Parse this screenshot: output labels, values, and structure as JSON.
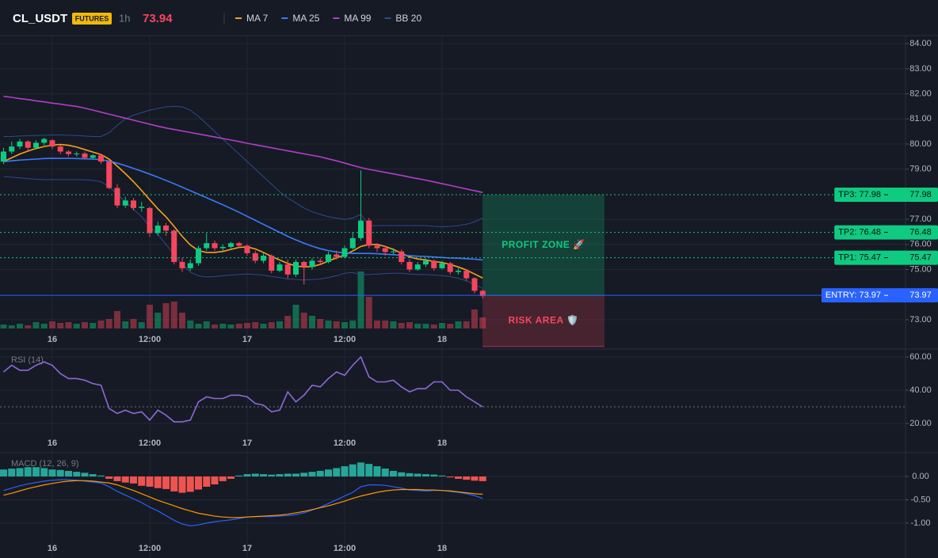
{
  "header": {
    "symbol": "CL_USDT",
    "badge": "FUTURES",
    "interval": "1h",
    "price": 73.94
  },
  "chart_data": [
    {
      "type": "candlestick",
      "categories": [
        null,
        null,
        null,
        null,
        null,
        null,
        "16",
        null,
        null,
        null,
        null,
        null,
        null,
        null,
        null,
        null,
        null,
        null,
        "12:00",
        null,
        null,
        null,
        null,
        null,
        null,
        null,
        null,
        null,
        null,
        null,
        "17",
        null,
        null,
        null,
        null,
        null,
        null,
        null,
        null,
        null,
        null,
        null,
        "12:00",
        null,
        null,
        null,
        null,
        null,
        null,
        null,
        null,
        null,
        null,
        null,
        "18",
        null,
        null,
        null,
        null,
        null
      ],
      "open": [
        79.3,
        79.7,
        79.9,
        80.1,
        79.85,
        80.05,
        80.15,
        79.9,
        79.7,
        79.6,
        79.62,
        79.45,
        79.55,
        79.3,
        78.25,
        77.55,
        77.75,
        77.45,
        77.45,
        76.45,
        76.75,
        76.55,
        75.3,
        75.05,
        75.25,
        75.85,
        76.05,
        75.85,
        75.9,
        76.05,
        75.95,
        75.65,
        75.35,
        75.55,
        74.95,
        75.2,
        74.8,
        75.3,
        75.1,
        75.35,
        75.3,
        75.6,
        75.5,
        75.85,
        76.25,
        76.95,
        75.95,
        75.85,
        75.7,
        75.72,
        75.3,
        75.0,
        75.2,
        75.35,
        75.05,
        75.25,
        74.9,
        74.95,
        74.65,
        74.15
      ],
      "high": [
        79.85,
        80.1,
        80.2,
        80.15,
        80.15,
        80.25,
        80.2,
        79.95,
        79.75,
        79.7,
        79.7,
        79.6,
        79.6,
        79.35,
        78.4,
        77.9,
        77.85,
        77.7,
        77.5,
        76.9,
        76.85,
        76.6,
        75.45,
        75.4,
        75.95,
        76.45,
        76.15,
        76.0,
        76.1,
        76.1,
        76.0,
        75.75,
        75.65,
        75.6,
        75.3,
        75.4,
        75.4,
        75.35,
        75.45,
        75.45,
        75.7,
        75.75,
        75.95,
        76.5,
        78.95,
        77.05,
        76.05,
        75.95,
        75.85,
        75.8,
        75.4,
        75.3,
        75.45,
        75.4,
        75.35,
        75.3,
        75.05,
        75.0,
        74.7,
        74.2
      ],
      "low": [
        79.2,
        79.6,
        79.8,
        79.75,
        79.8,
        79.95,
        79.8,
        79.6,
        79.5,
        79.5,
        79.4,
        79.4,
        79.2,
        78.2,
        77.45,
        77.45,
        77.35,
        77.3,
        76.3,
        76.35,
        76.35,
        75.2,
        74.9,
        74.95,
        75.15,
        75.75,
        75.75,
        75.75,
        75.8,
        75.85,
        75.55,
        75.25,
        75.25,
        74.85,
        74.9,
        74.65,
        74.7,
        74.4,
        75.0,
        75.2,
        75.25,
        75.4,
        75.45,
        75.8,
        76.15,
        75.85,
        75.7,
        75.55,
        75.6,
        75.2,
        74.9,
        74.95,
        75.1,
        74.95,
        75.0,
        74.8,
        74.8,
        74.55,
        74.05,
        73.85
      ],
      "close": [
        79.7,
        79.9,
        80.1,
        79.85,
        80.05,
        80.2,
        79.9,
        79.7,
        79.6,
        79.62,
        79.45,
        79.55,
        79.3,
        78.25,
        77.55,
        77.75,
        77.45,
        77.5,
        76.45,
        76.75,
        76.55,
        75.3,
        75.05,
        75.25,
        75.85,
        76.05,
        75.85,
        75.9,
        76.05,
        75.95,
        75.65,
        75.35,
        75.55,
        74.95,
        75.2,
        74.8,
        75.3,
        75.1,
        75.35,
        75.3,
        75.6,
        75.5,
        75.85,
        76.25,
        76.95,
        75.95,
        75.85,
        75.7,
        75.72,
        75.3,
        75.0,
        75.2,
        75.35,
        75.05,
        75.25,
        74.9,
        74.95,
        74.65,
        74.15,
        73.94
      ],
      "volume": [
        5,
        4,
        6,
        4,
        8,
        6,
        9,
        7,
        8,
        6,
        8,
        7,
        10,
        12,
        22,
        9,
        12,
        8,
        30,
        20,
        32,
        34,
        20,
        10,
        6,
        9,
        5,
        6,
        5,
        6,
        7,
        8,
        6,
        8,
        9,
        16,
        30,
        20,
        16,
        12,
        10,
        9,
        8,
        10,
        72,
        40,
        10,
        10,
        9,
        7,
        8,
        6,
        6,
        5,
        7,
        6,
        9,
        9,
        24,
        14
      ],
      "up_color": "#0ecb81",
      "down_color": "#f6465d",
      "series": [
        {
          "name": "MA 7",
          "color": "#f7a21b",
          "values": [
            79.3,
            79.45,
            79.6,
            79.72,
            79.82,
            79.9,
            79.96,
            79.98,
            79.95,
            79.88,
            79.78,
            79.68,
            79.58,
            79.4,
            79.12,
            78.82,
            78.5,
            78.15,
            77.78,
            77.42,
            77.1,
            76.72,
            76.32,
            75.98,
            75.75,
            75.68,
            75.68,
            75.72,
            75.8,
            75.88,
            75.9,
            75.82,
            75.68,
            75.52,
            75.38,
            75.24,
            75.14,
            75.1,
            75.12,
            75.2,
            75.34,
            75.46,
            75.58,
            75.74,
            75.92,
            76.0,
            76.0,
            75.92,
            75.8,
            75.65,
            75.5,
            75.42,
            75.38,
            75.32,
            75.28,
            75.2,
            75.1,
            74.98,
            74.82,
            74.66
          ]
        },
        {
          "name": "MA 25",
          "color": "#3a7bfd",
          "values": [
            79.3,
            79.33,
            79.36,
            79.38,
            79.4,
            79.42,
            79.43,
            79.43,
            79.43,
            79.42,
            79.41,
            79.4,
            79.38,
            79.32,
            79.24,
            79.14,
            79.03,
            78.92,
            78.8,
            78.68,
            78.55,
            78.42,
            78.28,
            78.14,
            78.0,
            77.86,
            77.72,
            77.58,
            77.43,
            77.28,
            77.12,
            76.96,
            76.8,
            76.64,
            76.48,
            76.32,
            76.18,
            76.05,
            75.93,
            75.83,
            75.75,
            75.7,
            75.66,
            75.64,
            75.64,
            75.64,
            75.63,
            75.61,
            75.59,
            75.57,
            75.55,
            75.53,
            75.52,
            75.5,
            75.48,
            75.46,
            75.45,
            75.43,
            75.41,
            75.38
          ]
        },
        {
          "name": "MA 99",
          "color": "#b13fc9",
          "values": [
            81.9,
            81.86,
            81.81,
            81.77,
            81.72,
            81.68,
            81.63,
            81.59,
            81.54,
            81.5,
            81.43,
            81.35,
            81.27,
            81.19,
            81.11,
            81.03,
            80.95,
            80.87,
            80.79,
            80.71,
            80.64,
            80.58,
            80.52,
            80.46,
            80.4,
            80.34,
            80.28,
            80.22,
            80.16,
            80.1,
            80.03,
            79.97,
            79.91,
            79.85,
            79.79,
            79.73,
            79.67,
            79.61,
            79.55,
            79.49,
            79.41,
            79.33,
            79.24,
            79.15,
            79.06,
            78.99,
            78.93,
            78.87,
            78.81,
            78.75,
            78.68,
            78.62,
            78.56,
            78.49,
            78.42,
            78.35,
            78.28,
            78.21,
            78.14,
            78.07
          ]
        },
        {
          "name": "BB 20",
          "color": "#2c4a8c",
          "upper": [
            80.3,
            80.3,
            80.32,
            80.33,
            80.34,
            80.35,
            80.36,
            80.36,
            80.35,
            80.34,
            80.32,
            80.3,
            80.3,
            80.45,
            80.75,
            81.0,
            81.15,
            81.25,
            81.35,
            81.42,
            81.48,
            81.5,
            81.48,
            81.35,
            81.1,
            80.8,
            80.5,
            80.2,
            79.9,
            79.6,
            79.3,
            79.0,
            78.7,
            78.4,
            78.1,
            77.85,
            77.65,
            77.45,
            77.3,
            77.2,
            77.1,
            77.05,
            77.0,
            77.05,
            77.2,
            76.75,
            76.75,
            76.75,
            76.75,
            76.75,
            76.75,
            76.75,
            76.75,
            76.72,
            76.7,
            76.72,
            76.75,
            76.8,
            76.9,
            77.05
          ],
          "lower": [
            78.7,
            78.68,
            78.65,
            78.62,
            78.6,
            78.58,
            78.58,
            78.58,
            78.58,
            78.58,
            78.58,
            78.55,
            78.5,
            78.3,
            78.0,
            77.7,
            77.4,
            77.1,
            76.7,
            76.4,
            76.0,
            75.6,
            75.2,
            74.9,
            74.75,
            74.7,
            74.72,
            74.75,
            74.78,
            74.8,
            74.82,
            74.8,
            74.78,
            74.72,
            74.68,
            74.62,
            74.6,
            74.58,
            74.6,
            74.62,
            74.68,
            74.75,
            74.85,
            74.88,
            74.8,
            74.8,
            74.82,
            74.84,
            74.85,
            74.85,
            74.82,
            74.8,
            74.8,
            74.78,
            74.76,
            74.72,
            74.65,
            74.55,
            74.4,
            74.25
          ]
        }
      ],
      "levels": [
        {
          "label": "TP3: 77.98",
          "value": 77.98,
          "color": "#0ecb81",
          "line": "dotted"
        },
        {
          "label": "TP2: 76.48",
          "value": 76.48,
          "color": "#0ecb81",
          "line": "dotted"
        },
        {
          "label": "TP1: 75.47",
          "value": 75.47,
          "color": "#0ecb81",
          "line": "dotted"
        },
        {
          "label": "ENTRY: 73.97",
          "value": 73.97,
          "color": "#2962ff",
          "line": "solid"
        }
      ],
      "zones": [
        {
          "label": "PROFIT ZONE 🚀",
          "from": 77.98,
          "to": 73.97,
          "color": "#0ecb81"
        },
        {
          "label": "RISK AREA 🛡️",
          "from": 73.97,
          "to": 71.93,
          "color": "#f6465d"
        }
      ],
      "ylim": [
        71.83,
        84.32
      ],
      "yticks": [
        {
          "value": 73,
          "label": "73.00"
        },
        {
          "value": 75,
          "label": "75.00"
        },
        {
          "value": 76,
          "label": "76.00"
        },
        {
          "value": 77,
          "label": "77.00"
        },
        {
          "value": 79,
          "label": "79.00"
        },
        {
          "value": 80,
          "label": "80.00"
        },
        {
          "value": 81,
          "label": "81.00"
        },
        {
          "value": 82,
          "label": "82.00"
        },
        {
          "value": 83,
          "label": "83.00"
        },
        {
          "value": 84,
          "label": "84.00"
        }
      ],
      "grid": true
    },
    {
      "type": "line",
      "title": "RSI (14)",
      "color": "#8c6ad8",
      "reference_line": 30,
      "values": [
        51,
        55,
        52,
        52,
        55,
        57,
        55,
        50,
        47,
        47,
        46,
        44,
        43,
        29,
        26,
        28,
        26,
        27,
        22,
        28,
        25,
        21,
        21,
        22,
        33,
        36,
        35,
        35,
        37,
        37,
        36,
        32,
        31,
        27,
        28,
        39,
        33,
        37,
        43,
        42,
        47,
        51,
        49,
        55,
        60,
        48,
        45,
        45,
        46,
        42,
        39,
        41,
        41,
        45,
        45,
        40,
        40,
        36,
        33,
        30
      ],
      "ylim": [
        2.38,
        64.76
      ],
      "yticks": [
        {
          "value": 60,
          "label": "60.00"
        },
        {
          "value": 40,
          "label": "40.00"
        },
        {
          "value": 20,
          "label": "20.00"
        }
      ],
      "grid": true
    },
    {
      "type": "macd",
      "title": "MACD (12, 26, 9)",
      "up_color": "#26a69a",
      "down_color": "#ef5350",
      "macd_color": "#2962ff",
      "signal_color": "#ff9800",
      "histogram": [
        0.15,
        0.17,
        0.18,
        0.2,
        0.2,
        0.18,
        0.15,
        0.14,
        0.12,
        0.1,
        0.08,
        0.05,
        0.02,
        -0.05,
        -0.1,
        -0.13,
        -0.15,
        -0.2,
        -0.22,
        -0.25,
        -0.27,
        -0.32,
        -0.35,
        -0.33,
        -0.28,
        -0.22,
        -0.17,
        -0.1,
        -0.05,
        0.02,
        0.05,
        0.06,
        0.05,
        0.04,
        0.05,
        0.06,
        0.06,
        0.08,
        0.1,
        0.12,
        0.15,
        0.18,
        0.22,
        0.26,
        0.3,
        0.27,
        0.22,
        0.17,
        0.12,
        0.09,
        0.07,
        0.06,
        0.05,
        0.04,
        0.02,
        -0.02,
        -0.05,
        -0.07,
        -0.09,
        -0.1
      ],
      "macd": [
        -0.3,
        -0.25,
        -0.2,
        -0.16,
        -0.13,
        -0.1,
        -0.08,
        -0.07,
        -0.07,
        -0.08,
        -0.1,
        -0.12,
        -0.14,
        -0.22,
        -0.32,
        -0.4,
        -0.48,
        -0.56,
        -0.66,
        -0.74,
        -0.84,
        -0.94,
        -1.02,
        -1.06,
        -1.04,
        -1.0,
        -0.97,
        -0.95,
        -0.93,
        -0.9,
        -0.87,
        -0.86,
        -0.86,
        -0.86,
        -0.85,
        -0.84,
        -0.82,
        -0.78,
        -0.72,
        -0.66,
        -0.58,
        -0.5,
        -0.42,
        -0.34,
        -0.22,
        -0.18,
        -0.18,
        -0.19,
        -0.22,
        -0.25,
        -0.29,
        -0.3,
        -0.31,
        -0.3,
        -0.3,
        -0.32,
        -0.34,
        -0.37,
        -0.41,
        -0.47
      ],
      "signal": [
        -0.4,
        -0.36,
        -0.31,
        -0.26,
        -0.22,
        -0.18,
        -0.15,
        -0.12,
        -0.1,
        -0.09,
        -0.09,
        -0.1,
        -0.12,
        -0.14,
        -0.18,
        -0.24,
        -0.3,
        -0.37,
        -0.44,
        -0.51,
        -0.57,
        -0.63,
        -0.69,
        -0.74,
        -0.79,
        -0.82,
        -0.85,
        -0.87,
        -0.88,
        -0.88,
        -0.87,
        -0.86,
        -0.85,
        -0.84,
        -0.83,
        -0.81,
        -0.78,
        -0.75,
        -0.71,
        -0.67,
        -0.63,
        -0.58,
        -0.53,
        -0.47,
        -0.42,
        -0.38,
        -0.34,
        -0.31,
        -0.29,
        -0.28,
        -0.28,
        -0.28,
        -0.29,
        -0.29,
        -0.3,
        -0.31,
        -0.33,
        -0.35,
        -0.37,
        -0.38
      ],
      "ylim": [
        -1.75,
        0.51
      ],
      "yticks": [
        {
          "value": 0,
          "label": "0.00"
        },
        {
          "value": -0.5,
          "label": "-0.50"
        },
        {
          "value": -1,
          "label": "-1.00"
        }
      ],
      "grid": true
    }
  ]
}
